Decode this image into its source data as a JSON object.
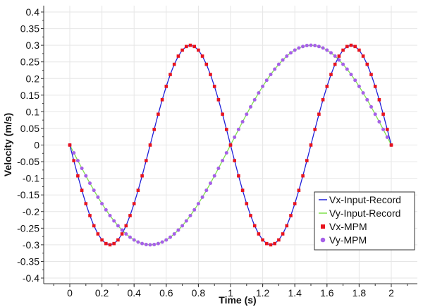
{
  "chart_data": {
    "type": "line",
    "xlabel": "Time (s)",
    "ylabel": "Velocity (m/s)",
    "xlim": [
      -0.15,
      2.15
    ],
    "ylim": [
      -0.42,
      0.42
    ],
    "xticks": [
      "0",
      "0.2",
      "0.4",
      "0.6",
      "0.8",
      "1",
      "1.2",
      "1.4",
      "1.6",
      "1.8",
      "2"
    ],
    "xtick_values": [
      0,
      0.2,
      0.4,
      0.6,
      0.8,
      1,
      1.2,
      1.4,
      1.6,
      1.8,
      2
    ],
    "yticks": [
      "0.4",
      "0.35",
      "0.3",
      "0.25",
      "0.2",
      "0.15",
      "0.1",
      "0.05",
      "0",
      "-0.05",
      "-0.1",
      "-0.15",
      "-0.2",
      "-0.25",
      "-0.3",
      "-0.35",
      "-0.4"
    ],
    "ytick_values": [
      0.4,
      0.35,
      0.3,
      0.25,
      0.2,
      0.15,
      0.1,
      0.05,
      0,
      -0.05,
      -0.1,
      -0.15,
      -0.2,
      -0.25,
      -0.3,
      -0.35,
      -0.4
    ],
    "grid": true,
    "legend_position": "bottom-right",
    "sample_x": [
      0.0,
      0.025,
      0.05,
      0.075,
      0.1,
      0.125,
      0.15,
      0.175,
      0.2,
      0.225,
      0.25,
      0.275,
      0.3,
      0.325,
      0.35,
      0.375,
      0.4,
      0.425,
      0.45,
      0.475,
      0.5,
      0.525,
      0.55,
      0.575,
      0.6,
      0.625,
      0.65,
      0.675,
      0.7,
      0.725,
      0.75,
      0.775,
      0.8,
      0.825,
      0.85,
      0.875,
      0.9,
      0.925,
      0.95,
      0.975,
      1.0,
      1.025,
      1.05,
      1.075,
      1.1,
      1.125,
      1.15,
      1.175,
      1.2,
      1.225,
      1.25,
      1.275,
      1.3,
      1.325,
      1.35,
      1.375,
      1.4,
      1.425,
      1.45,
      1.475,
      1.5,
      1.525,
      1.55,
      1.575,
      1.6,
      1.625,
      1.65,
      1.675,
      1.7,
      1.725,
      1.75,
      1.775,
      1.8,
      1.825,
      1.85,
      1.875,
      1.9,
      1.925,
      1.95,
      1.975,
      2.0
    ],
    "series": [
      {
        "name": "Vx-Input-Record",
        "kind": "line",
        "color": "#1f1fd8",
        "y": [
          0.0,
          -0.0469,
          -0.0927,
          -0.1362,
          -0.1763,
          -0.2121,
          -0.2427,
          -0.2673,
          -0.2853,
          -0.2963,
          -0.3,
          -0.2963,
          -0.2853,
          -0.2673,
          -0.2427,
          -0.2121,
          -0.1763,
          -0.1362,
          -0.0927,
          -0.0469,
          0.0,
          0.0469,
          0.0927,
          0.1362,
          0.1763,
          0.2121,
          0.2427,
          0.2673,
          0.2853,
          0.2963,
          0.3,
          0.2963,
          0.2853,
          0.2673,
          0.2427,
          0.2121,
          0.1763,
          0.1362,
          0.0927,
          0.0469,
          0.0,
          -0.0469,
          -0.0927,
          -0.1362,
          -0.1763,
          -0.2121,
          -0.2427,
          -0.2673,
          -0.2853,
          -0.2963,
          -0.3,
          -0.2963,
          -0.2853,
          -0.2673,
          -0.2427,
          -0.2121,
          -0.1763,
          -0.1362,
          -0.0927,
          -0.0469,
          0.0,
          0.0469,
          0.0927,
          0.1362,
          0.1763,
          0.2121,
          0.2427,
          0.2673,
          0.2853,
          0.2963,
          0.3,
          0.2963,
          0.2853,
          0.2673,
          0.2427,
          0.2121,
          0.1763,
          0.1362,
          0.0927,
          0.0469,
          0.0
        ]
      },
      {
        "name": "Vy-Input-Record",
        "kind": "line",
        "color": "#7ee04a",
        "y": [
          0.0,
          -0.0235,
          -0.0469,
          -0.07,
          -0.0927,
          -0.1148,
          -0.1362,
          -0.1567,
          -0.1763,
          -0.1948,
          -0.2121,
          -0.2281,
          -0.2427,
          -0.2558,
          -0.2673,
          -0.2772,
          -0.2853,
          -0.2917,
          -0.2963,
          -0.2991,
          -0.3,
          -0.2991,
          -0.2963,
          -0.2917,
          -0.2853,
          -0.2772,
          -0.2673,
          -0.2558,
          -0.2427,
          -0.2281,
          -0.2121,
          -0.1948,
          -0.1763,
          -0.1567,
          -0.1362,
          -0.1148,
          -0.0927,
          -0.07,
          -0.0469,
          -0.0235,
          0.0,
          0.0235,
          0.0469,
          0.07,
          0.0927,
          0.1148,
          0.1362,
          0.1567,
          0.1763,
          0.1948,
          0.2121,
          0.2281,
          0.2427,
          0.2558,
          0.2673,
          0.2772,
          0.2853,
          0.2917,
          0.2963,
          0.2991,
          0.3,
          0.2991,
          0.2963,
          0.2917,
          0.2853,
          0.2772,
          0.2673,
          0.2558,
          0.2427,
          0.2281,
          0.2121,
          0.1948,
          0.1763,
          0.1567,
          0.1362,
          0.1148,
          0.0927,
          0.07,
          0.0469,
          0.0235,
          0.0
        ]
      },
      {
        "name": "Vx-MPM",
        "kind": "square-markers",
        "color": "#e8141e",
        "y": [
          0.0,
          -0.0469,
          -0.0927,
          -0.1362,
          -0.1763,
          -0.2121,
          -0.2427,
          -0.2673,
          -0.2853,
          -0.2963,
          -0.3,
          -0.2963,
          -0.2853,
          -0.2673,
          -0.2427,
          -0.2121,
          -0.1763,
          -0.1362,
          -0.0927,
          -0.0469,
          0.0,
          0.0469,
          0.0927,
          0.1362,
          0.1763,
          0.2121,
          0.2427,
          0.2673,
          0.2853,
          0.2963,
          0.3,
          0.2963,
          0.2853,
          0.2673,
          0.2427,
          0.2121,
          0.1763,
          0.1362,
          0.0927,
          0.0469,
          0.0,
          -0.0469,
          -0.0927,
          -0.1362,
          -0.1763,
          -0.2121,
          -0.2427,
          -0.2673,
          -0.2853,
          -0.2963,
          -0.3,
          -0.2963,
          -0.2853,
          -0.2673,
          -0.2427,
          -0.2121,
          -0.1763,
          -0.1362,
          -0.0927,
          -0.0469,
          0.0,
          0.0469,
          0.0927,
          0.1362,
          0.1763,
          0.2121,
          0.2427,
          0.2673,
          0.2853,
          0.2963,
          0.3,
          0.2963,
          0.2853,
          0.2673,
          0.2427,
          0.2121,
          0.1763,
          0.1362,
          0.0927,
          0.0469,
          0.0
        ]
      },
      {
        "name": "Vy-MPM",
        "kind": "circle-markers",
        "color": "#a660e8",
        "y": [
          0.0,
          -0.0235,
          -0.0469,
          -0.07,
          -0.0927,
          -0.1148,
          -0.1362,
          -0.1567,
          -0.1763,
          -0.1948,
          -0.2121,
          -0.2281,
          -0.2427,
          -0.2558,
          -0.2673,
          -0.2772,
          -0.2853,
          -0.2917,
          -0.2963,
          -0.2991,
          -0.3,
          -0.2991,
          -0.2963,
          -0.2917,
          -0.2853,
          -0.2772,
          -0.2673,
          -0.2558,
          -0.2427,
          -0.2281,
          -0.2121,
          -0.1948,
          -0.1763,
          -0.1567,
          -0.1362,
          -0.1148,
          -0.0927,
          -0.07,
          -0.0469,
          -0.0235,
          0.0,
          0.0235,
          0.0469,
          0.07,
          0.0927,
          0.1148,
          0.1362,
          0.1567,
          0.1763,
          0.1948,
          0.2121,
          0.2281,
          0.2427,
          0.2558,
          0.2673,
          0.2772,
          0.2853,
          0.2917,
          0.2963,
          0.2991,
          0.3,
          0.2991,
          0.2963,
          0.2917,
          0.2853,
          0.2772,
          0.2673,
          0.2558,
          0.2427,
          0.2281,
          0.2121,
          0.1948,
          0.1763,
          0.1567,
          0.1362,
          0.1148,
          0.0927,
          0.07,
          0.0469,
          0.0235,
          0.0
        ]
      }
    ]
  }
}
